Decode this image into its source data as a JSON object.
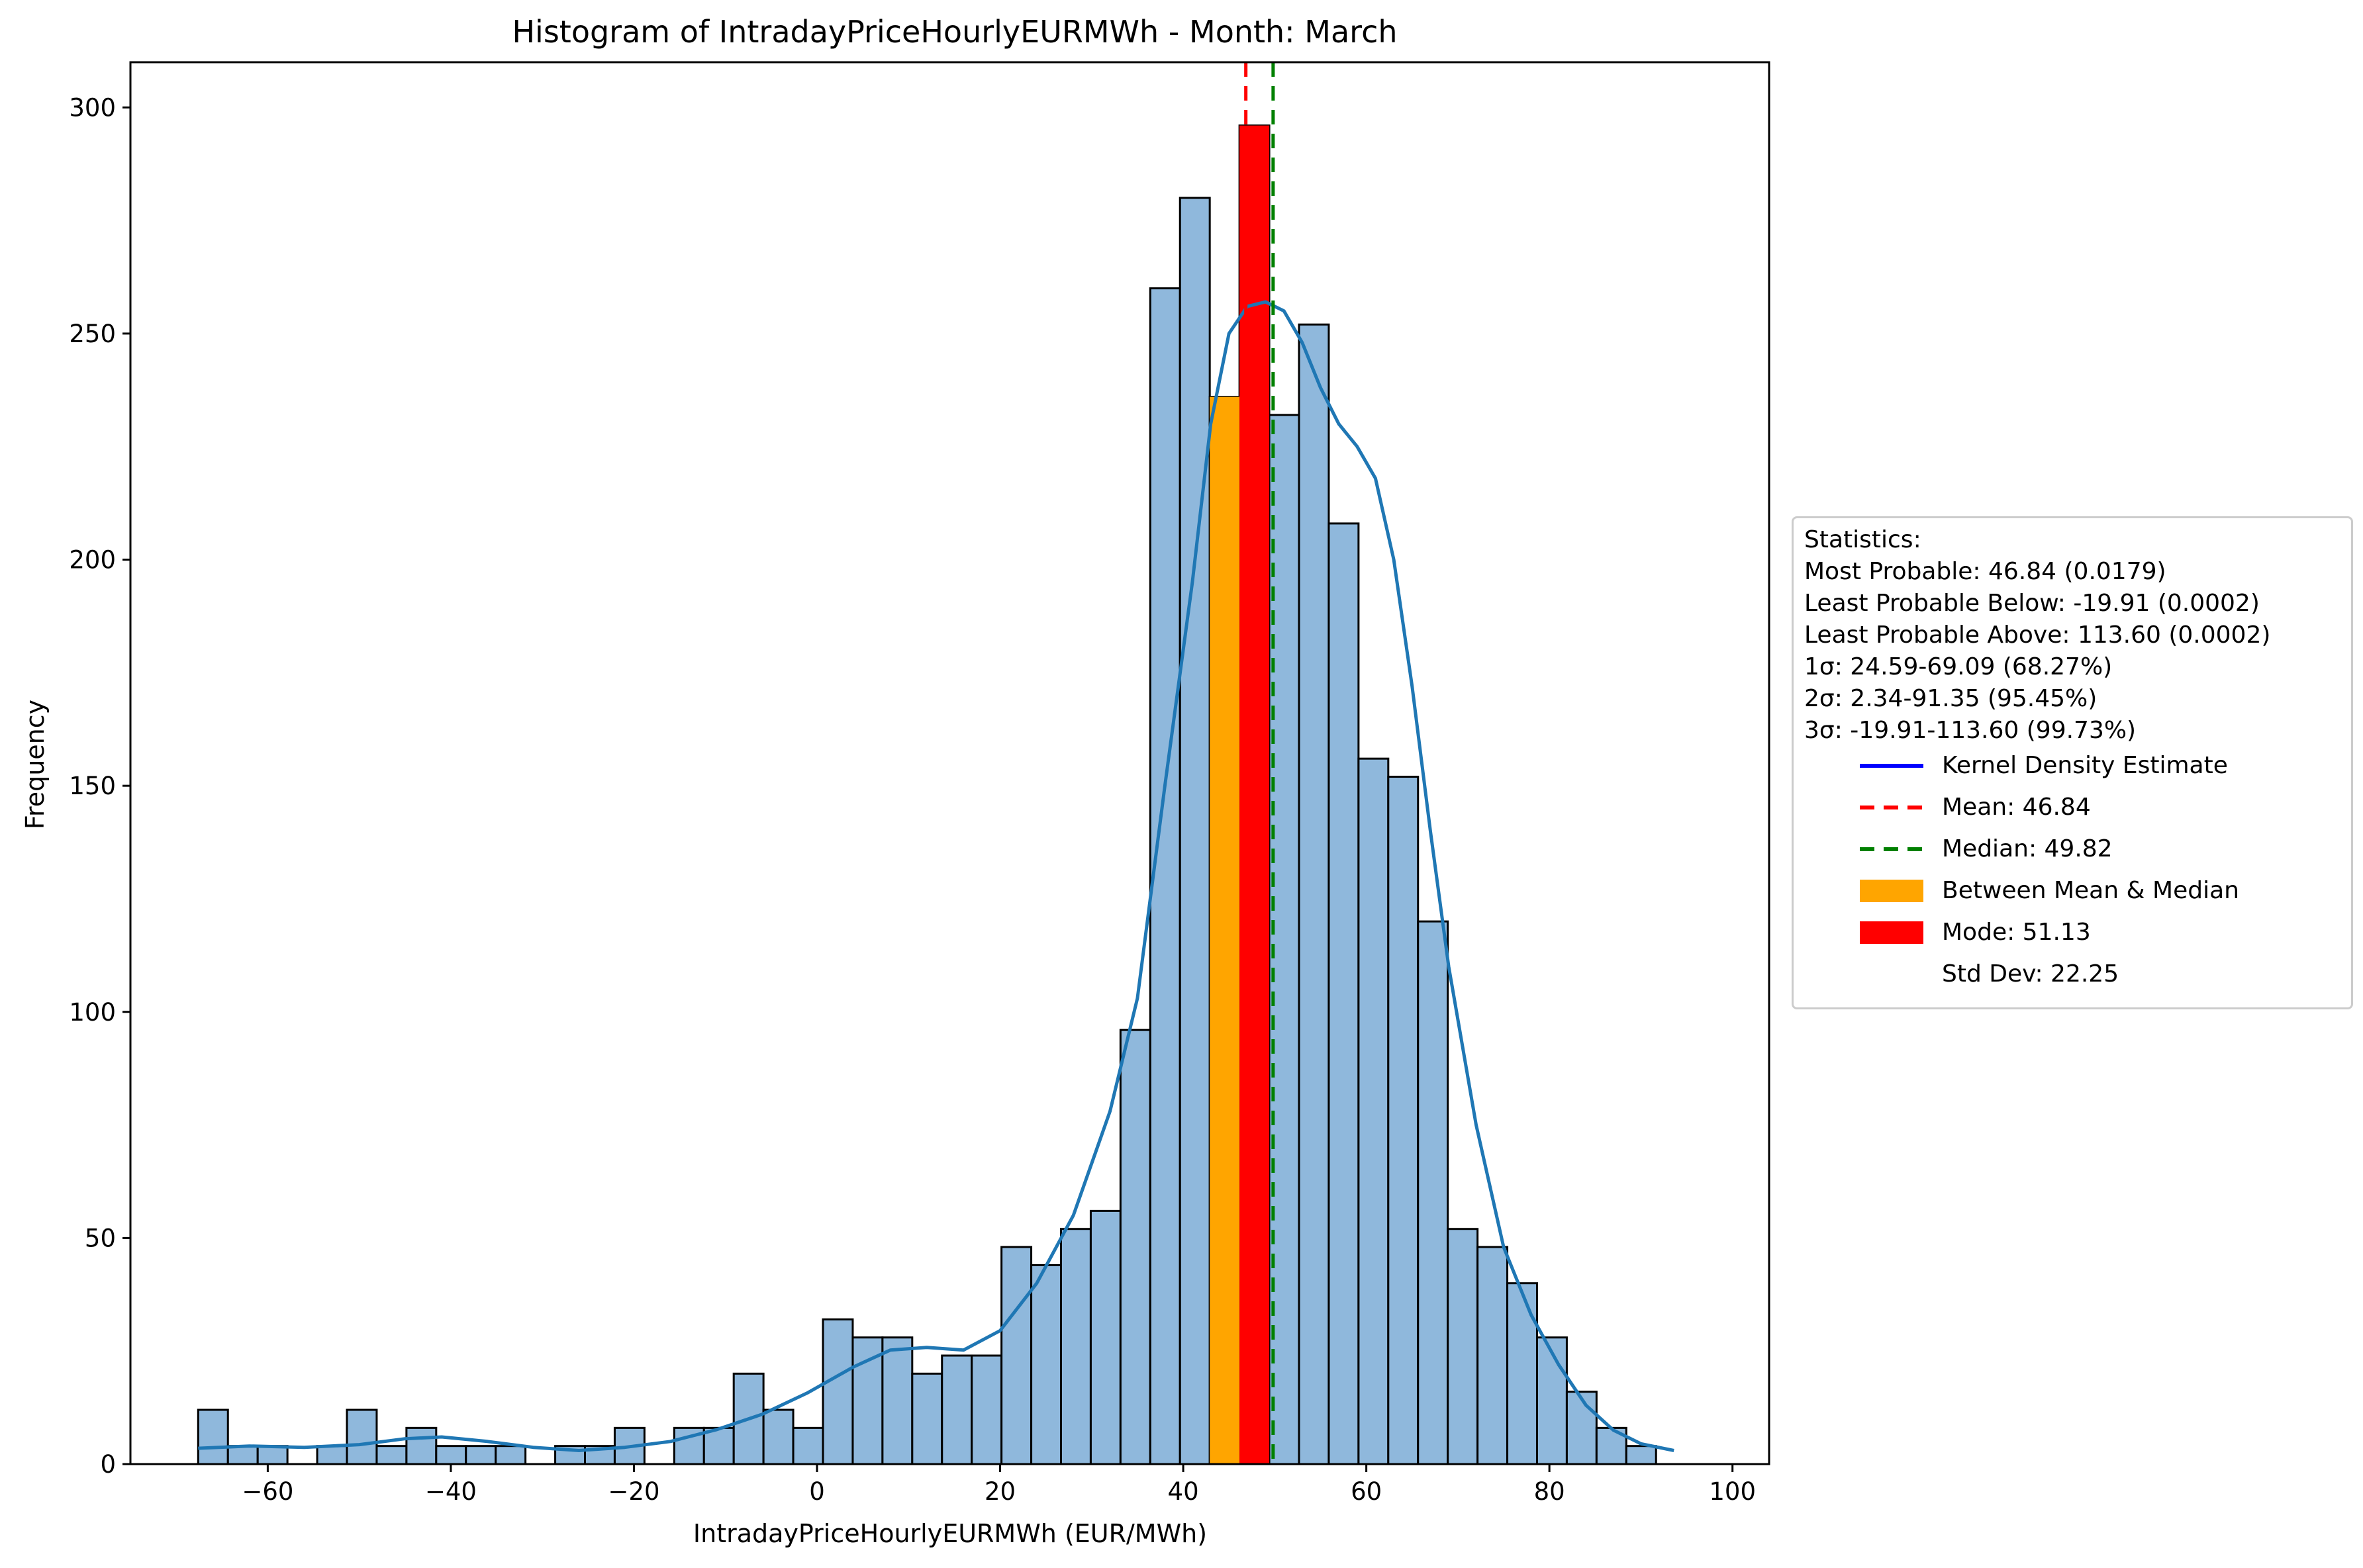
{
  "chart_data": {
    "type": "bar",
    "title": "Histogram of IntradayPriceHourlyEURMWh - Month: March",
    "xlabel": "IntradayPriceHourlyEURMWh (EUR/MWh)",
    "ylabel": "Frequency",
    "xlim": [
      -75,
      104
    ],
    "ylim": [
      0,
      310
    ],
    "xticks": [
      -60,
      -40,
      -20,
      0,
      20,
      40,
      60,
      80,
      100
    ],
    "xtick_labels": [
      "−60",
      "−40",
      "−20",
      "0",
      "20",
      "40",
      "60",
      "80",
      "100"
    ],
    "yticks": [
      0,
      50,
      100,
      150,
      200,
      250,
      300
    ],
    "ytick_labels": [
      "0",
      "50",
      "100",
      "150",
      "200",
      "250",
      "300"
    ],
    "grid": false,
    "legend_position": "outside-right",
    "bin_start": -67.6,
    "bin_width": 3.25,
    "values": [
      12,
      4,
      4,
      0,
      4,
      12,
      4,
      8,
      4,
      4,
      4,
      0,
      4,
      4,
      8,
      0,
      8,
      8,
      20,
      12,
      8,
      32,
      28,
      28,
      20,
      24,
      24,
      48,
      44,
      52,
      56,
      96,
      260,
      280,
      236,
      296,
      232,
      252,
      208,
      156,
      152,
      120,
      52,
      48,
      40,
      28,
      16,
      8,
      4
    ],
    "highlight_bins": {
      "mean_median_bin": 34,
      "mode_bin": 35
    },
    "kde": {
      "x": [
        -67.6,
        -62,
        -56,
        -50,
        -45,
        -41,
        -36,
        -31,
        -26,
        -21,
        -16,
        -11,
        -6,
        -1,
        4,
        8,
        12,
        16,
        20,
        24,
        28,
        32,
        35,
        38,
        41,
        43,
        45,
        47,
        49,
        51,
        53,
        55,
        57,
        59,
        61,
        63,
        65,
        67,
        69,
        72,
        75,
        78,
        81,
        84,
        87,
        90,
        93.6
      ],
      "y": [
        3.5,
        4,
        3.7,
        4.3,
        5.6,
        6,
        5,
        3.7,
        3,
        3.7,
        5,
        7.6,
        11,
        15.8,
        21.5,
        25.2,
        25.8,
        25.2,
        29.5,
        40,
        55,
        78,
        103,
        150,
        195,
        230,
        250,
        256,
        257,
        255,
        248,
        238,
        230,
        225,
        218,
        200,
        172,
        140,
        110,
        75,
        48,
        33,
        22,
        13,
        7.5,
        4.5,
        3
      ]
    },
    "mean": 46.84,
    "median": 49.82,
    "mode": 51.13,
    "std_dev": 22.25,
    "colors": {
      "bar": "#8fb8dc",
      "bar_edge": "#000000",
      "kde": "#1f77b4",
      "mean": "#ff0000",
      "median": "#008000",
      "between": "#ffa500",
      "mode": "#ff0000",
      "legend_kde": "#0000ff"
    },
    "statistics": {
      "header": "Statistics:",
      "most_probable": "Most Probable: 46.84 (0.0179)",
      "least_below": "Least Probable Below: -19.91 (0.0002)",
      "least_above": "Least Probable Above: 113.60 (0.0002)",
      "sigma1": "1σ: 24.59-69.09 (68.27%)",
      "sigma2": "2σ: 2.34-91.35 (95.45%)",
      "sigma3": "3σ: -19.91-113.60 (99.73%)"
    },
    "legend": [
      {
        "label": "Kernel Density Estimate",
        "style": "line",
        "color": "#0000ff"
      },
      {
        "label": "Mean: 46.84",
        "style": "dashed",
        "color": "#ff0000"
      },
      {
        "label": "Median: 49.82",
        "style": "dashed",
        "color": "#008000"
      },
      {
        "label": "Between Mean & Median",
        "style": "patch",
        "color": "#ffa500"
      },
      {
        "label": "Mode: 51.13",
        "style": "patch",
        "color": "#ff0000"
      },
      {
        "label": "Std Dev: 22.25",
        "style": "none",
        "color": ""
      }
    ]
  }
}
